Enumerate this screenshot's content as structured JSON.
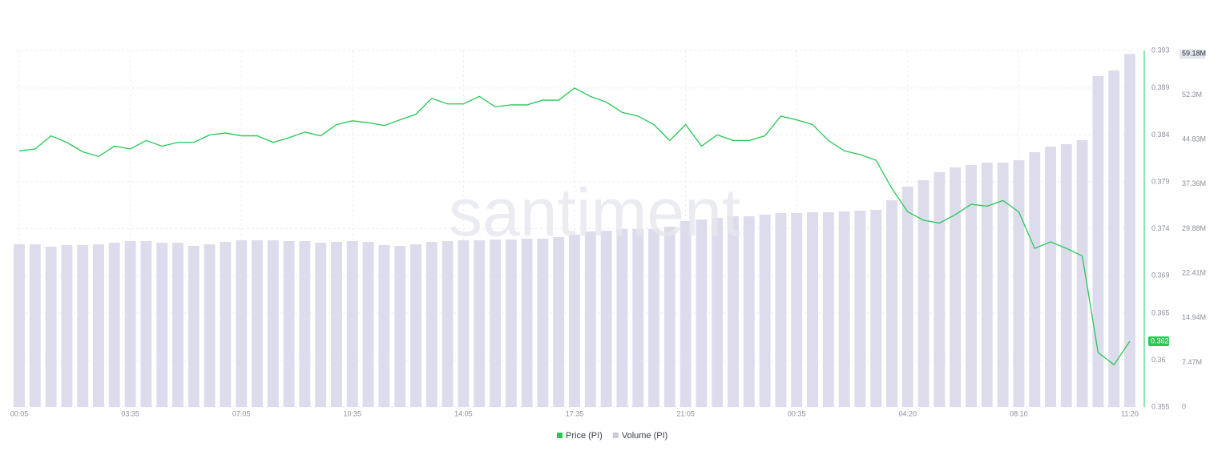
{
  "chart_data": {
    "type": "line-bar",
    "watermark": "santiment",
    "categories": [
      "00:05",
      null,
      null,
      null,
      null,
      null,
      null,
      "03:35",
      null,
      null,
      null,
      null,
      null,
      null,
      "07:05",
      null,
      null,
      null,
      null,
      null,
      null,
      "10:35",
      null,
      null,
      null,
      null,
      null,
      null,
      "14:05",
      null,
      null,
      null,
      null,
      null,
      null,
      "17:35",
      null,
      null,
      null,
      null,
      null,
      null,
      "21:05",
      null,
      null,
      null,
      null,
      null,
      null,
      "00:35",
      null,
      null,
      null,
      null,
      null,
      null,
      "04:20",
      null,
      null,
      null,
      null,
      null,
      null,
      "08:10",
      null,
      null,
      null,
      null,
      null,
      null,
      "11:20"
    ],
    "series": [
      {
        "name": "Price (PI)",
        "color": "#26c953",
        "values": [
          0.3823,
          0.3825,
          0.3839,
          0.3832,
          0.3822,
          0.3817,
          0.3828,
          0.3825,
          0.3834,
          0.3828,
          0.3832,
          0.3832,
          0.384,
          0.3842,
          0.3839,
          0.3839,
          0.3832,
          0.3837,
          0.3843,
          0.3839,
          0.3851,
          0.3855,
          0.3853,
          0.385,
          0.3856,
          0.3862,
          0.3879,
          0.3873,
          0.3873,
          0.3881,
          0.387,
          0.3872,
          0.3872,
          0.3877,
          0.3877,
          0.389,
          0.3881,
          0.3875,
          0.3864,
          0.386,
          0.3851,
          0.3834,
          0.3851,
          0.3828,
          0.384,
          0.3834,
          0.3834,
          0.3839,
          0.386,
          0.3856,
          0.3851,
          0.3834,
          0.3823,
          0.3819,
          0.3813,
          0.3783,
          0.3758,
          0.3749,
          0.3746,
          0.3755,
          0.3766,
          0.3764,
          0.377,
          0.3758,
          0.3719,
          0.3726,
          0.3719,
          0.3711,
          0.3608,
          0.3595,
          0.362
        ]
      },
      {
        "name": "Volume (PI)",
        "color": "#dcdced",
        "axis": "y2",
        "last_value_label": "59.18M",
        "values": [
          27260000,
          27260000,
          26860000,
          27130000,
          27130000,
          27260000,
          27530000,
          27800000,
          27800000,
          27530000,
          27530000,
          26990000,
          27260000,
          27670000,
          27930000,
          27930000,
          27930000,
          27800000,
          27800000,
          27530000,
          27670000,
          27800000,
          27670000,
          27130000,
          26990000,
          27260000,
          27670000,
          27800000,
          27930000,
          27930000,
          28070000,
          28070000,
          28200000,
          28200000,
          28470000,
          28870000,
          29410000,
          29550000,
          29810000,
          29810000,
          29810000,
          30220000,
          31160000,
          31430000,
          31690000,
          31960000,
          31960000,
          32230000,
          32500000,
          32500000,
          32630000,
          32630000,
          32770000,
          32900000,
          33040000,
          34650000,
          36930000,
          38010000,
          39350000,
          40160000,
          40560000,
          40960000,
          40960000,
          41360000,
          42710000,
          43650000,
          44050000,
          44720000,
          55470000,
          56410000,
          59180000
        ]
      }
    ],
    "ylim": [
      0.355,
      0.393
    ],
    "yticks": [
      0.355,
      0.36,
      0.365,
      0.369,
      0.374,
      0.379,
      0.384,
      0.389,
      0.393
    ],
    "y2lim": [
      0,
      59760000
    ],
    "y2ticks": [
      0,
      {
        "value": 7470000,
        "label": "7.47M"
      },
      {
        "value": 14940000,
        "label": "14.94M"
      },
      {
        "value": 22410000,
        "label": "22.41M"
      },
      {
        "value": 29880000,
        "label": "29.88M"
      },
      {
        "value": 37360000,
        "label": "37.36M"
      },
      {
        "value": 44830000,
        "label": "44.83M"
      },
      {
        "value": 52300000,
        "label": "52.3M"
      }
    ],
    "grid": true
  }
}
